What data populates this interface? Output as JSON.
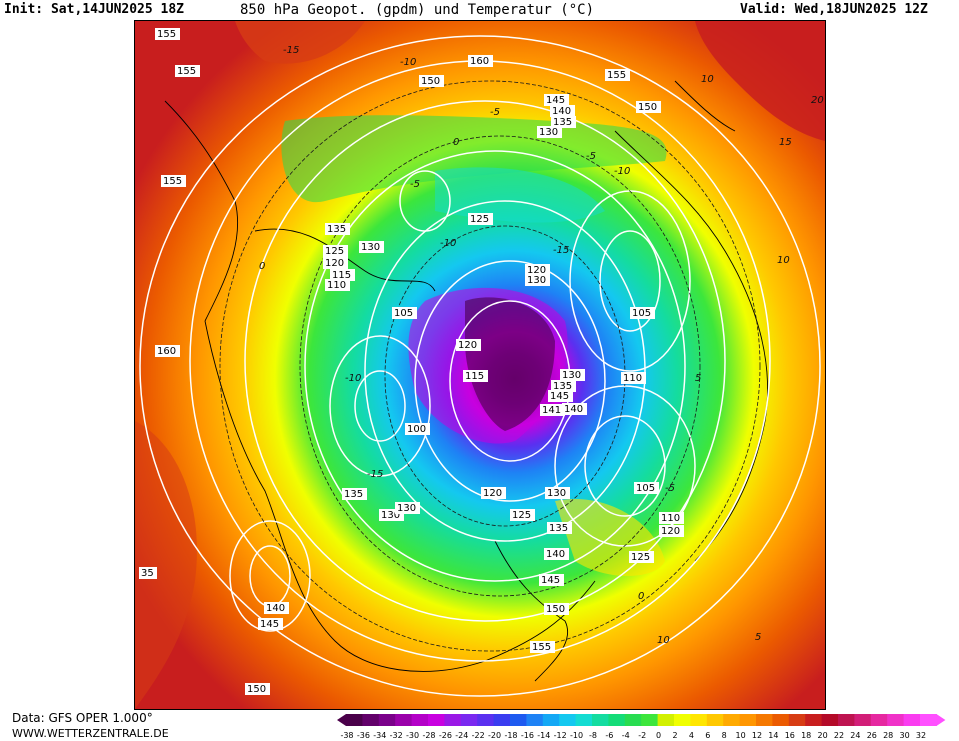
{
  "header": {
    "init": "Init: Sat,14JUN2025 18Z",
    "title": "850 hPa Geopot. (gpdm) und Temperatur (°C)",
    "valid": "Valid: Wed,18JUN2025 12Z"
  },
  "footer": {
    "data_source": "Data: GFS OPER 1.000°",
    "website": "WWW.WETTERZENTRALE.DE"
  },
  "legend": {
    "ticks": [
      "-38",
      "-36",
      "-34",
      "-32",
      "-30",
      "-28",
      "-26",
      "-24",
      "-22",
      "-20",
      "-18",
      "-16",
      "-14",
      "-12",
      "-10",
      "-8",
      "-6",
      "-4",
      "-2",
      "0",
      "2",
      "4",
      "6",
      "8",
      "10",
      "12",
      "14",
      "16",
      "18",
      "20",
      "22",
      "24",
      "26",
      "28",
      "30",
      "32"
    ],
    "colors": [
      "#4a004a",
      "#62006a",
      "#7a008a",
      "#9a00aa",
      "#b400c8",
      "#c800e0",
      "#9a18e6",
      "#7a28f0",
      "#5a30f0",
      "#3a3cf0",
      "#1e5af0",
      "#1e82f5",
      "#14a8f5",
      "#14c8f0",
      "#14dcd2",
      "#14dca0",
      "#14dc78",
      "#28dc50",
      "#3ce63c",
      "#d2f000",
      "#f0ff00",
      "#ffe600",
      "#ffc800",
      "#ffaa00",
      "#ff9600",
      "#f57800",
      "#eb5a00",
      "#d73c14",
      "#c81e1e",
      "#b40a28",
      "#be1450",
      "#d21e78",
      "#e628a0",
      "#f032c8",
      "#fa3cf0",
      "#ff50ff"
    ]
  },
  "map_labels": [
    {
      "text": "155"
    },
    {
      "text": "155"
    },
    {
      "text": "155"
    },
    {
      "text": "160"
    },
    {
      "text": "150"
    },
    {
      "text": "155"
    },
    {
      "text": "145"
    },
    {
      "text": "140"
    },
    {
      "text": "135"
    },
    {
      "text": "130"
    },
    {
      "text": "150"
    },
    {
      "text": "155"
    },
    {
      "text": "125"
    },
    {
      "text": "135"
    },
    {
      "text": "130"
    },
    {
      "text": "125"
    },
    {
      "text": "120"
    },
    {
      "text": "115"
    },
    {
      "text": "110"
    },
    {
      "text": "120"
    },
    {
      "text": "130"
    },
    {
      "text": "105"
    },
    {
      "text": "105"
    },
    {
      "text": "160"
    },
    {
      "text": "120"
    },
    {
      "text": "115"
    },
    {
      "text": "130"
    },
    {
      "text": "135"
    },
    {
      "text": "110"
    },
    {
      "text": "145"
    },
    {
      "text": "141"
    },
    {
      "text": "140"
    },
    {
      "text": "100"
    },
    {
      "text": "120"
    },
    {
      "text": "130"
    },
    {
      "text": "105"
    },
    {
      "text": "135"
    },
    {
      "text": "130"
    },
    {
      "text": "130"
    },
    {
      "text": "125"
    },
    {
      "text": "110"
    },
    {
      "text": "120"
    },
    {
      "text": "135"
    },
    {
      "text": "140"
    },
    {
      "text": "125"
    },
    {
      "text": "145"
    },
    {
      "text": "140"
    },
    {
      "text": "150"
    },
    {
      "text": "145"
    },
    {
      "text": "155"
    },
    {
      "text": "150"
    },
    {
      "text": "35"
    }
  ],
  "temp_labels": [
    {
      "text": "-15"
    },
    {
      "text": "-10"
    },
    {
      "text": "-5"
    },
    {
      "text": "0"
    },
    {
      "text": "10"
    },
    {
      "text": "15"
    },
    {
      "text": "20"
    },
    {
      "text": "-5"
    },
    {
      "text": "-10"
    },
    {
      "text": "-15"
    },
    {
      "text": "-10"
    },
    {
      "text": "-5"
    },
    {
      "text": "0"
    },
    {
      "text": "5"
    },
    {
      "text": "10"
    },
    {
      "text": "-10"
    },
    {
      "text": "-15"
    },
    {
      "text": "-5"
    },
    {
      "text": "0"
    },
    {
      "text": "5"
    },
    {
      "text": "10"
    }
  ]
}
